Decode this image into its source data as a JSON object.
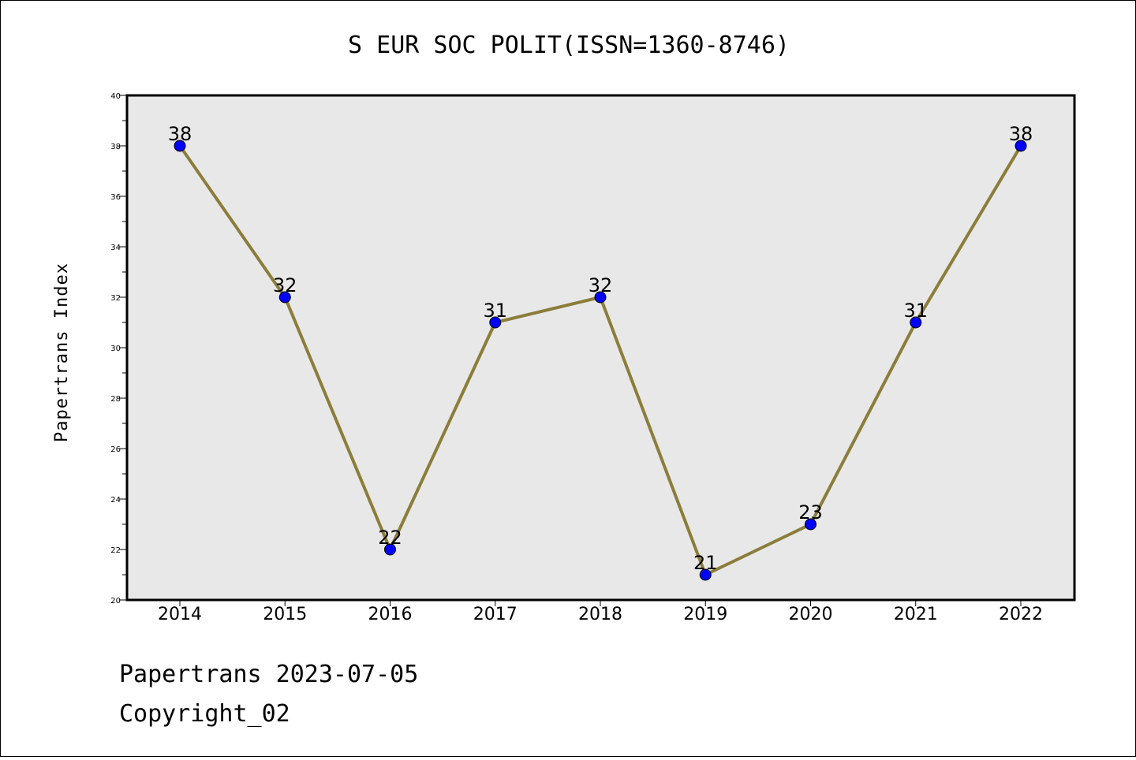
{
  "chart_data": {
    "type": "line",
    "title": "S EUR SOC POLIT(ISSN=1360-8746)",
    "xlabel": "",
    "ylabel": "Papertrans Index",
    "categories": [
      "2014",
      "2015",
      "2016",
      "2017",
      "2018",
      "2019",
      "2020",
      "2021",
      "2022"
    ],
    "series": [
      {
        "values": [
          38,
          32,
          22,
          31,
          32,
          21,
          23,
          31,
          38
        ]
      }
    ],
    "ylim": [
      20,
      40
    ],
    "yticks": [
      20,
      22,
      24,
      26,
      28,
      30,
      32,
      34,
      36,
      38,
      40
    ],
    "grid": false,
    "legend": "none",
    "colors": {
      "line": "#8b7d3a",
      "marker": "#0000ff",
      "plot_background": "#e8e8e8"
    }
  },
  "footer": {
    "line1": "Papertrans 2023-07-05",
    "line2": "Copyright_02"
  }
}
